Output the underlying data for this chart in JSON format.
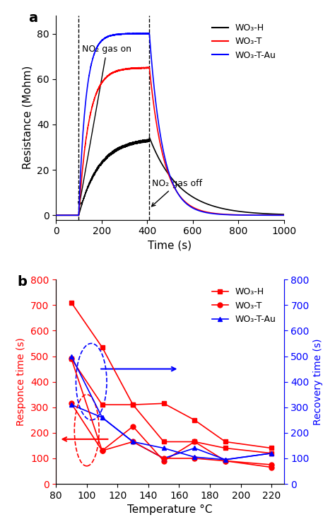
{
  "panel_a": {
    "title": "a",
    "xlabel": "Time (s)",
    "ylabel": "Resistance (Mohm)",
    "xlim": [
      0,
      1000
    ],
    "ylim": [
      -2,
      88
    ],
    "yticks": [
      0,
      20,
      40,
      60,
      80
    ],
    "xticks": [
      0,
      200,
      400,
      600,
      800,
      1000
    ],
    "gas_on_time": 100,
    "gas_off_time": 410,
    "legend_labels": [
      "WO₃-H",
      "WO₃-T",
      "WO₃-T-Au"
    ],
    "annotation_on": "NO₂ gas on",
    "annotation_off": "NO₂ gas off",
    "WO3H_peak": 34,
    "WO3T_peak": 65,
    "WO3TAu_peak": 80
  },
  "panel_b": {
    "title": "b",
    "xlabel": "Temperature °C",
    "ylabel_left": "Responce time (s)",
    "ylabel_right": "Recovery time (s)",
    "xlim": [
      80,
      228
    ],
    "ylim_left": [
      0,
      800
    ],
    "ylim_right": [
      0,
      800
    ],
    "xticks": [
      80,
      100,
      120,
      140,
      160,
      180,
      200,
      220
    ],
    "yticks_left": [
      0,
      100,
      200,
      300,
      400,
      500,
      600,
      700,
      800
    ],
    "yticks_right": [
      0,
      100,
      200,
      300,
      400,
      500,
      600,
      700,
      800
    ],
    "temperatures": [
      90,
      110,
      130,
      150,
      170,
      190,
      220
    ],
    "response_WO3H": [
      710,
      535,
      310,
      315,
      250,
      165,
      140
    ],
    "response_WO3T": [
      315,
      130,
      225,
      90,
      165,
      90,
      65
    ],
    "response_WO3TAu": [
      310,
      260,
      165,
      100,
      140,
      95,
      120
    ],
    "recovery_WO3H": [
      490,
      310,
      310,
      165,
      165,
      140,
      120
    ],
    "recovery_WO3T": [
      490,
      130,
      165,
      100,
      100,
      90,
      75
    ],
    "recovery_WO3TAu": [
      500,
      260,
      165,
      140,
      105,
      95,
      120
    ],
    "legend_labels": [
      "WO₃-H",
      "WO₃-T",
      "WO₃-T-Au"
    ]
  }
}
